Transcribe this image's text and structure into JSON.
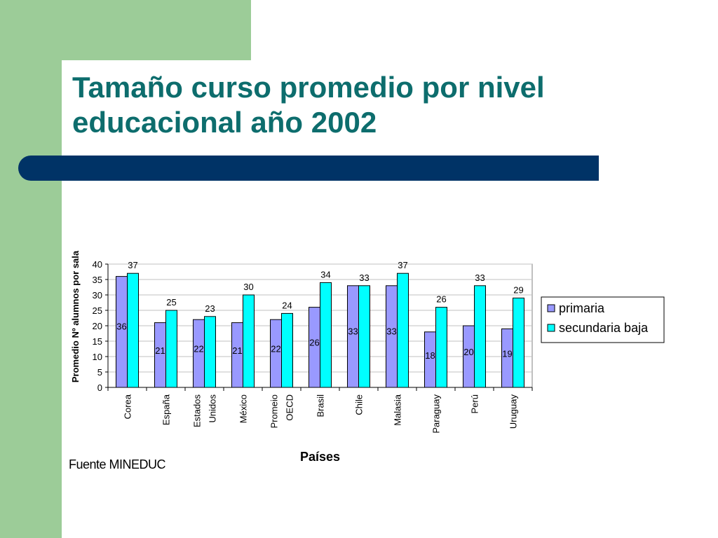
{
  "slide": {
    "title_line1": "Tamaño curso promedio por nivel",
    "title_line2": "educacional año 2002",
    "source": "Fuente MINEDUC",
    "colors": {
      "title": "#0d6d6d",
      "accent_bar": "#003366",
      "side_band": "#9ccc98"
    }
  },
  "chart_data": {
    "type": "bar",
    "xlabel": "Países",
    "ylabel": "Promedio Nº alumnos por sala",
    "ylim": [
      0,
      40
    ],
    "yticks": [
      0,
      5,
      10,
      15,
      20,
      25,
      30,
      35,
      40
    ],
    "grid": true,
    "legend_position": "right",
    "categories": [
      [
        "Corea"
      ],
      [
        "España"
      ],
      [
        "Estados",
        "Unidos"
      ],
      [
        "México"
      ],
      [
        "Promeio",
        "OECD"
      ],
      [
        "Brasil"
      ],
      [
        "Chile"
      ],
      [
        "Malasia"
      ],
      [
        "Paraguay"
      ],
      [
        "Perú"
      ],
      [
        "Uruguay"
      ]
    ],
    "series": [
      {
        "name": "primaria",
        "color": "#9999ff",
        "values": [
          36,
          21,
          22,
          21,
          22,
          26,
          33,
          33,
          18,
          20,
          19
        ]
      },
      {
        "name": "secundaria baja",
        "color": "#00ffff",
        "values": [
          37,
          25,
          23,
          30,
          24,
          34,
          33,
          37,
          26,
          33,
          29
        ]
      }
    ]
  }
}
